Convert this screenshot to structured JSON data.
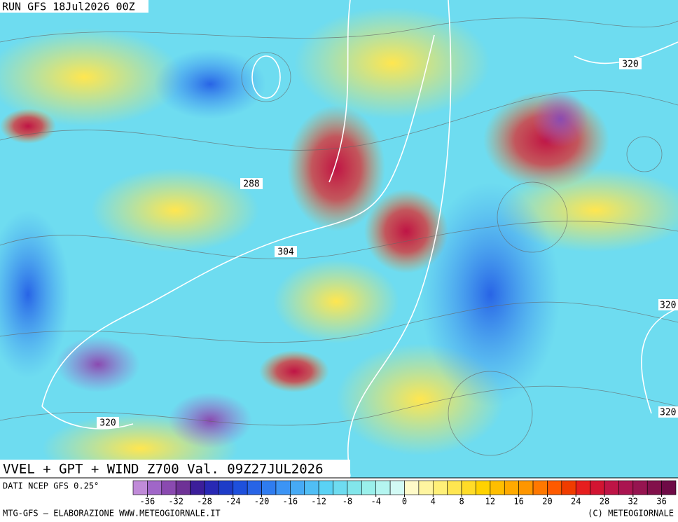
{
  "header": {
    "title": "RUN GFS 18Jul2026 00Z"
  },
  "map": {
    "contour_labels": [
      "288",
      "304",
      "320",
      "320",
      "320",
      "320"
    ],
    "caption": "VVEL + GPT + WIND Z700 Val. 09Z27JUL2026"
  },
  "colorbar": {
    "source": "DATI NCEP GFS 0.25°",
    "ticks": [
      -36,
      -32,
      -28,
      -24,
      -20,
      -16,
      -12,
      -8,
      -4,
      0,
      4,
      8,
      12,
      16,
      20,
      24,
      28,
      32,
      36
    ],
    "colors": [
      "#c08bd8",
      "#a066c8",
      "#8a4ab0",
      "#6e3296",
      "#3c1e9a",
      "#2828b4",
      "#1e3cc8",
      "#1e50dc",
      "#2864e6",
      "#2f7cf0",
      "#3c94f5",
      "#46aaf5",
      "#50bef5",
      "#5ad2f5",
      "#6edcf0",
      "#82e6eb",
      "#9af0eb",
      "#b4f5f0",
      "#d2faf5",
      "#fffac8",
      "#fff5a0",
      "#fff078",
      "#ffe650",
      "#ffdc28",
      "#ffd200",
      "#ffbe00",
      "#ffaa00",
      "#ff9600",
      "#ff7800",
      "#ff5a00",
      "#f03c00",
      "#e61e1e",
      "#d21432",
      "#be1446",
      "#aa1450",
      "#961450",
      "#82104b",
      "#6e0a46"
    ]
  },
  "footer": {
    "left": "MTG-GFS – ELABORAZIONE WWW.METEOGIORNALE.IT",
    "right": "(C) METEOGIORNALE"
  }
}
